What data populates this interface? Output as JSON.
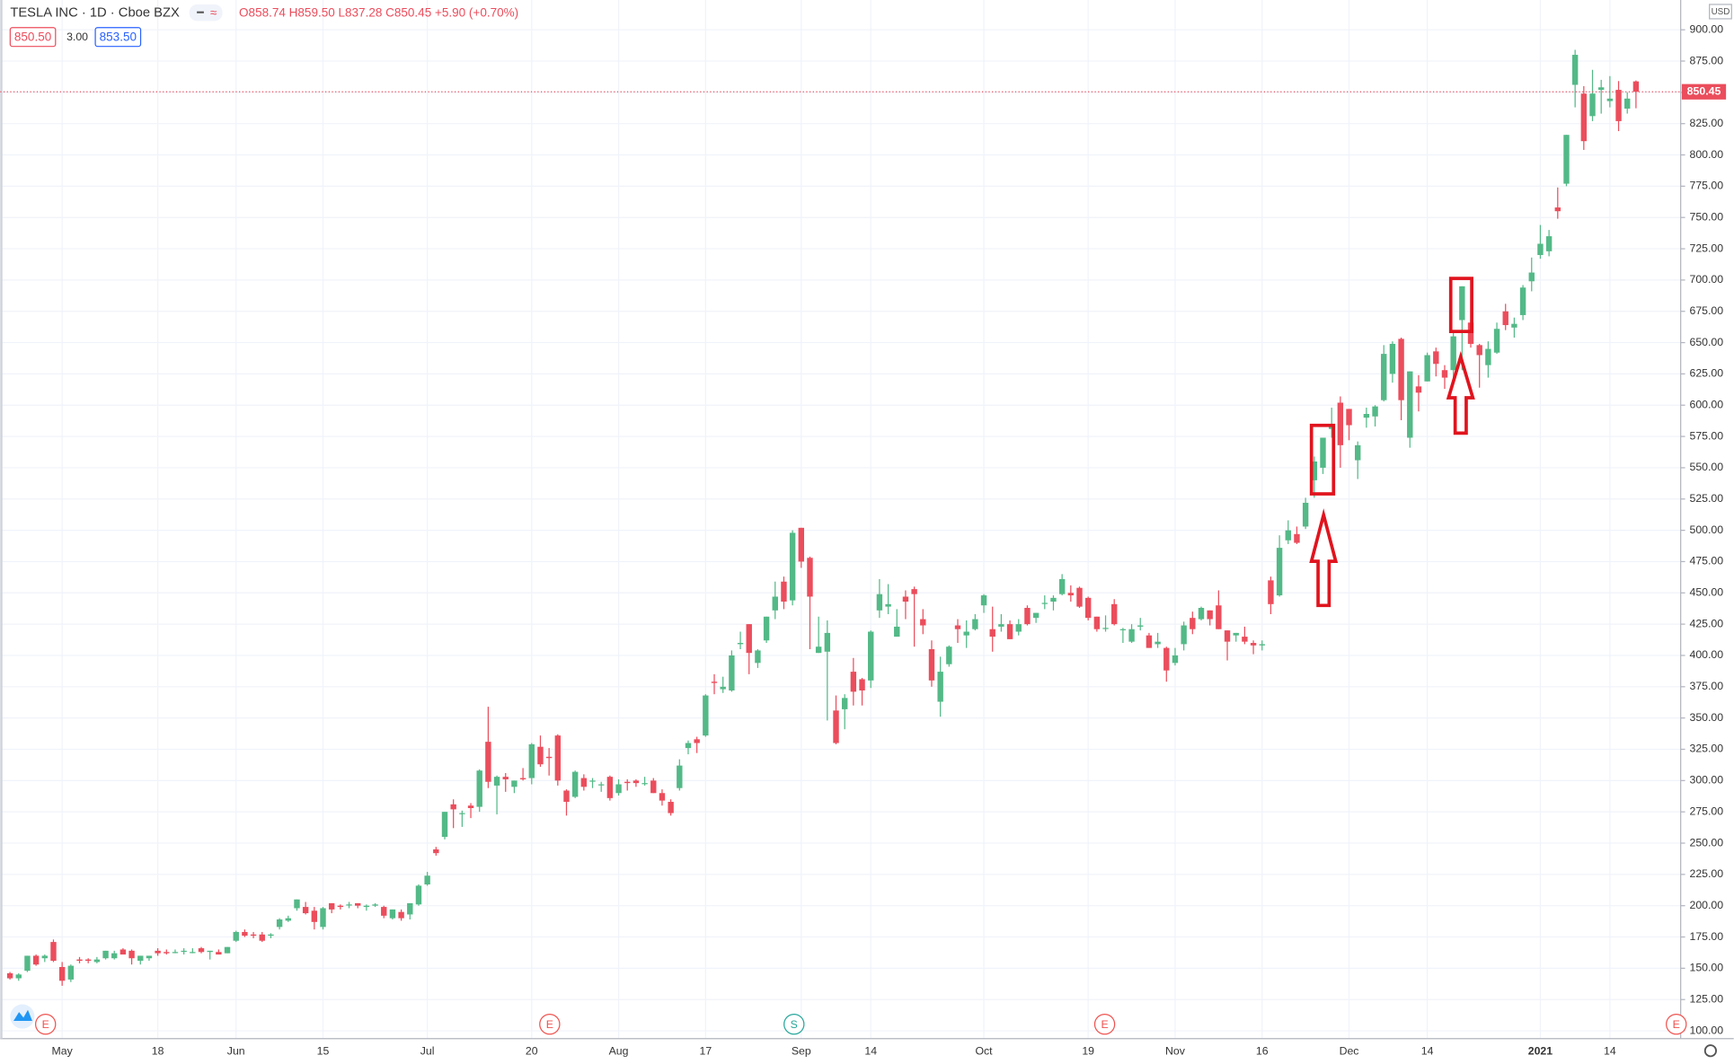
{
  "chart_data": {
    "type": "candlestick",
    "title": "TESLA INC · 1D · Cboe BZX",
    "quote": "O858.74 H859.50 L837.28 C850.45 +5.90 (+0.70%)",
    "bid": "850.50",
    "spread": "3.00",
    "ask": "853.50",
    "currency": "USD",
    "events": [
      "E",
      "E",
      "S",
      "E",
      "E"
    ],
    "up_color": "#53b987",
    "down_color": "#eb4d5c",
    "grid": true,
    "ylim": [
      93.8,
      923.8
    ],
    "yticks": [
      {
        "value": 100,
        "label": "100.00"
      },
      {
        "value": 125,
        "label": "125.00"
      },
      {
        "value": 150,
        "label": "150.00"
      },
      {
        "value": 175,
        "label": "175.00"
      },
      {
        "value": 200,
        "label": "200.00"
      },
      {
        "value": 225,
        "label": "225.00"
      },
      {
        "value": 250,
        "label": "250.00"
      },
      {
        "value": 275,
        "label": "275.00"
      },
      {
        "value": 300,
        "label": "300.00"
      },
      {
        "value": 325,
        "label": "325.00"
      },
      {
        "value": 350,
        "label": "350.00"
      },
      {
        "value": 375,
        "label": "375.00"
      },
      {
        "value": 400,
        "label": "400.00"
      },
      {
        "value": 425,
        "label": "425.00"
      },
      {
        "value": 450,
        "label": "450.00"
      },
      {
        "value": 475,
        "label": "475.00"
      },
      {
        "value": 500,
        "label": "500.00"
      },
      {
        "value": 525,
        "label": "525.00"
      },
      {
        "value": 550,
        "label": "550.00"
      },
      {
        "value": 575,
        "label": "575.00"
      },
      {
        "value": 600,
        "label": "600.00"
      },
      {
        "value": 625,
        "label": "625.00"
      },
      {
        "value": 650,
        "label": "650.00"
      },
      {
        "value": 675,
        "label": "675.00"
      },
      {
        "value": 700,
        "label": "700.00"
      },
      {
        "value": 725,
        "label": "725.00"
      },
      {
        "value": 750,
        "label": "750.00"
      },
      {
        "value": 775,
        "label": "775.00"
      },
      {
        "value": 800,
        "label": "800.00"
      },
      {
        "value": 825,
        "label": "825.00"
      },
      {
        "value": 850,
        "label": "850.00"
      },
      {
        "value": 875,
        "label": "875.00"
      },
      {
        "value": 900,
        "label": "900.00"
      }
    ],
    "categories": [
      null,
      null,
      null,
      null,
      null,
      null,
      "May",
      null,
      null,
      null,
      null,
      null,
      null,
      null,
      null,
      null,
      null,
      "18",
      null,
      null,
      null,
      null,
      null,
      null,
      null,
      null,
      "Jun",
      null,
      null,
      null,
      null,
      null,
      null,
      null,
      null,
      null,
      "15",
      null,
      null,
      null,
      null,
      null,
      null,
      null,
      null,
      null,
      null,
      null,
      "Jul",
      null,
      null,
      null,
      null,
      null,
      null,
      null,
      null,
      null,
      null,
      null,
      "20",
      null,
      null,
      null,
      null,
      null,
      null,
      null,
      null,
      null,
      "Aug",
      null,
      null,
      null,
      null,
      null,
      null,
      null,
      null,
      null,
      "17",
      null,
      null,
      null,
      null,
      null,
      null,
      null,
      null,
      null,
      null,
      "Sep",
      null,
      null,
      null,
      null,
      null,
      null,
      null,
      "14",
      null,
      null,
      null,
      null,
      null,
      null,
      null,
      null,
      null,
      null,
      null,
      null,
      "Oct",
      null,
      null,
      null,
      null,
      null,
      null,
      null,
      null,
      null,
      null,
      null,
      "19",
      null,
      null,
      null,
      null,
      null,
      null,
      null,
      null,
      null,
      "Nov",
      null,
      null,
      null,
      null,
      null,
      null,
      null,
      null,
      null,
      "16",
      null,
      null,
      null,
      null,
      null,
      null,
      null,
      null,
      null,
      "Dec",
      null,
      null,
      null,
      null,
      null,
      null,
      null,
      null,
      "14",
      null,
      null,
      null,
      null,
      null,
      null,
      null,
      null,
      null,
      null,
      null,
      null,
      "2021",
      null,
      null,
      null,
      null,
      null,
      null,
      null,
      "14",
      null,
      null,
      null
    ],
    "open": [
      146,
      142,
      148,
      160,
      158,
      171,
      151,
      141,
      157,
      157,
      155,
      158,
      158,
      165,
      164,
      156,
      158,
      164,
      163,
      163,
      164,
      163,
      166,
      163,
      163,
      162,
      172,
      179,
      177,
      177,
      176,
      183,
      188,
      198,
      199,
      196,
      183,
      202,
      200,
      201,
      202,
      199,
      200,
      199,
      190,
      195,
      193,
      201,
      217,
      245,
      255,
      281,
      274,
      280,
      279,
      331,
      296,
      303,
      295,
      302,
      302,
      327,
      319,
      336,
      292,
      287,
      302,
      300,
      297,
      303,
      290,
      299,
      300,
      298,
      300,
      290,
      283,
      294,
      326,
      333,
      336,
      379,
      373,
      372,
      409,
      425,
      394,
      412,
      436,
      459,
      444,
      502,
      478,
      402,
      403,
      356,
      357,
      387,
      381,
      380,
      436,
      439,
      415,
      447,
      453,
      429,
      405,
      363,
      393,
      424,
      416,
      421,
      440,
      421,
      423,
      425,
      419,
      438,
      430,
      442,
      443,
      449,
      450,
      454,
      446,
      431,
      422,
      441,
      421,
      411,
      423,
      416,
      409,
      406,
      394,
      409,
      430,
      429,
      436,
      440,
      420,
      416,
      415,
      410,
      408,
      460,
      448,
      492,
      497,
      503,
      540,
      550,
      581,
      602,
      597,
      556,
      590,
      591,
      604,
      625,
      653,
      574,
      615,
      619,
      643,
      628,
      628,
      668,
      666,
      648,
      632,
      642,
      675,
      662,
      672,
      699,
      720,
      723,
      758,
      777,
      856,
      849,
      831,
      852,
      843,
      852,
      837,
      858.74
    ],
    "high": [
      147,
      146,
      160,
      161,
      161,
      173,
      155,
      153,
      159,
      158,
      159,
      164,
      164,
      166,
      165,
      160,
      160,
      166,
      165,
      165,
      166,
      166,
      167,
      164,
      165,
      167,
      180,
      181,
      179,
      179,
      178,
      190,
      192,
      205,
      203,
      199,
      199,
      202,
      201,
      203,
      202,
      201,
      202,
      200,
      197,
      197,
      202,
      217,
      227,
      247,
      275,
      285,
      276,
      282,
      309,
      359,
      304,
      306,
      300,
      310,
      330,
      336,
      326,
      337,
      293,
      308,
      305,
      302,
      299,
      304,
      301,
      301,
      301,
      303,
      302,
      293,
      285,
      317,
      332,
      335,
      369,
      385,
      383,
      404,
      419,
      425,
      405,
      431,
      459,
      463,
      500,
      502,
      479,
      431,
      428,
      368,
      369,
      398,
      382,
      420,
      461,
      457,
      437,
      452,
      455,
      437,
      412,
      399,
      408,
      429,
      428,
      433,
      449,
      439,
      433,
      428,
      429,
      440,
      434,
      448,
      448,
      465,
      456,
      455,
      447,
      431,
      432,
      445,
      422,
      425,
      430,
      418,
      418,
      407,
      406,
      427,
      435,
      439,
      436,
      452,
      420,
      418,
      423,
      412,
      412,
      463,
      496,
      508,
      503,
      526,
      559,
      574,
      598,
      607,
      597,
      571,
      598,
      600,
      648,
      651,
      654,
      627,
      624,
      642,
      646,
      632,
      658,
      695,
      668,
      649,
      651,
      666,
      681,
      670,
      696,
      718,
      744,
      740,
      774,
      816,
      884,
      855,
      868,
      860,
      863,
      859,
      850,
      859.5
    ],
    "low": [
      141,
      140,
      147,
      152,
      155,
      155,
      136,
      139,
      154,
      154,
      154,
      157,
      157,
      161,
      153,
      153,
      156,
      160,
      161,
      162,
      161,
      162,
      162,
      157,
      161,
      162,
      171,
      175,
      174,
      171,
      174,
      181,
      187,
      196,
      193,
      181,
      181,
      194,
      197,
      198,
      198,
      196,
      199,
      190,
      189,
      188,
      189,
      200,
      216,
      240,
      253,
      262,
      263,
      270,
      275,
      294,
      273,
      291,
      290,
      300,
      297,
      311,
      304,
      296,
      272,
      286,
      292,
      294,
      291,
      284,
      288,
      292,
      295,
      296,
      290,
      280,
      272,
      292,
      321,
      322,
      335,
      369,
      370,
      371,
      405,
      385,
      390,
      410,
      429,
      437,
      440,
      470,
      405,
      402,
      348,
      329,
      341,
      360,
      360,
      374,
      430,
      433,
      415,
      429,
      407,
      417,
      375,
      351,
      391,
      410,
      406,
      420,
      434,
      403,
      419,
      413,
      416,
      424,
      426,
      437,
      436,
      448,
      443,
      438,
      428,
      419,
      419,
      424,
      410,
      410,
      420,
      406,
      406,
      379,
      392,
      404,
      417,
      428,
      424,
      421,
      396,
      411,
      409,
      401,
      404,
      433,
      447,
      489,
      489,
      501,
      526,
      545,
      574,
      550,
      572,
      541,
      582,
      583,
      603,
      618,
      588,
      566,
      595,
      619,
      623,
      613,
      620,
      628,
      646,
      614,
      622,
      641,
      660,
      654,
      668,
      691,
      717,
      719,
      749,
      775,
      838,
      804,
      827,
      833,
      838,
      819,
      833,
      837.28
    ],
    "close": [
      142,
      145,
      160,
      153,
      160,
      156,
      140,
      152,
      156,
      156,
      157,
      164,
      162,
      161,
      158,
      160,
      160,
      162,
      162,
      163,
      164,
      163,
      163,
      164,
      161,
      167,
      179,
      176,
      176,
      172,
      177,
      189,
      190,
      205,
      194,
      187,
      198,
      197,
      199,
      201,
      200,
      200,
      201,
      192,
      197,
      190,
      202,
      216,
      224,
      242,
      275,
      277,
      274,
      278,
      308,
      299,
      303,
      301,
      300,
      301,
      329,
      313,
      318,
      300,
      283,
      307,
      295,
      300,
      297,
      286,
      297,
      298,
      298,
      298,
      290,
      284,
      274,
      312,
      330,
      330,
      368,
      378,
      375,
      400,
      410,
      402,
      404,
      431,
      447,
      443,
      498,
      475,
      447,
      407,
      418,
      330,
      366,
      371,
      372,
      419,
      449,
      441,
      423,
      443,
      449,
      424,
      380,
      387,
      407,
      421,
      419,
      429,
      448,
      415,
      425,
      413,
      425,
      425,
      434,
      442,
      446,
      461,
      448,
      439,
      430,
      421,
      422,
      425,
      421,
      421,
      424,
      406,
      411,
      388,
      400,
      424,
      421,
      438,
      429,
      421,
      411,
      418,
      411,
      408,
      409,
      441,
      486,
      500,
      490,
      522,
      555,
      574,
      585,
      568,
      584,
      568,
      593,
      599,
      641,
      649,
      604,
      627,
      610,
      640,
      633,
      622,
      655,
      695,
      649,
      640,
      645,
      661,
      664,
      665,
      694,
      706,
      729,
      735,
      755,
      816,
      880,
      811,
      849,
      854,
      845,
      827,
      845,
      850.45
    ]
  }
}
